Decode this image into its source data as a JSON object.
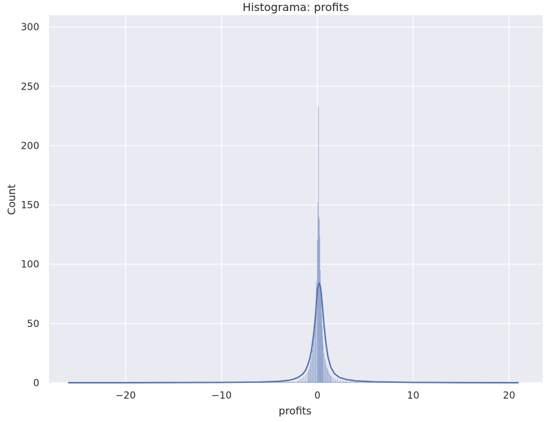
{
  "chart_data": {
    "type": "histogram",
    "title": "Histograma: profits",
    "xlabel": "profits",
    "ylabel": "Count",
    "xlim": [
      -28,
      23.5
    ],
    "ylim": [
      0,
      310
    ],
    "xticks": [
      -20,
      -10,
      0,
      10,
      20
    ],
    "xtick_labels": [
      "−20",
      "−10",
      "0",
      "10",
      "20"
    ],
    "yticks": [
      0,
      50,
      100,
      150,
      200,
      250,
      300
    ],
    "ytick_labels": [
      "0",
      "50",
      "100",
      "150",
      "200",
      "250",
      "300"
    ],
    "grid": true,
    "bar_color": "#8da0cb",
    "kde_color": "#4c72b0",
    "background_color": "#eaeaf2",
    "bins": {
      "x": [
        -2.0,
        -1.8,
        -1.6,
        -1.4,
        -1.2,
        -1.0,
        -0.9,
        -0.8,
        -0.7,
        -0.6,
        -0.5,
        -0.4,
        -0.3,
        -0.2,
        -0.1,
        0.0,
        0.05,
        0.1,
        0.15,
        0.2,
        0.25,
        0.3,
        0.35,
        0.4,
        0.45,
        0.5,
        0.55,
        0.6,
        0.7,
        0.8,
        0.9,
        1.0,
        1.1,
        1.2,
        1.3,
        1.4,
        1.5,
        1.7,
        1.9,
        2.1,
        2.4,
        2.7,
        3.0,
        3.5,
        4.0,
        5.0,
        6.0
      ],
      "counts": [
        2,
        3,
        4,
        5,
        7,
        9,
        11,
        14,
        18,
        22,
        28,
        35,
        45,
        60,
        85,
        120,
        152,
        233,
        140,
        138,
        123,
        95,
        80,
        70,
        58,
        48,
        40,
        32,
        25,
        20,
        16,
        13,
        11,
        9,
        7,
        6,
        5,
        4,
        3,
        3,
        2,
        2,
        2,
        1,
        1,
        1,
        1
      ],
      "width": 0.05
    },
    "tail_range": [
      -26,
      21
    ],
    "kde": {
      "x": [
        -26,
        -20,
        -10,
        -6,
        -4,
        -3,
        -2.5,
        -2,
        -1.5,
        -1.2,
        -1.0,
        -0.8,
        -0.6,
        -0.4,
        -0.2,
        0.0,
        0.1,
        0.2,
        0.3,
        0.4,
        0.5,
        0.7,
        0.9,
        1.1,
        1.4,
        1.8,
        2.3,
        3.0,
        4.0,
        6.0,
        10,
        15,
        21
      ],
      "y": [
        0,
        0,
        0.3,
        0.6,
        1.2,
        2,
        3,
        4.5,
        7.5,
        11,
        15,
        20,
        28,
        40,
        56,
        79,
        82,
        84,
        82,
        76,
        67,
        48,
        33,
        22,
        13,
        7.5,
        4.5,
        2.8,
        1.6,
        0.8,
        0.3,
        0.1,
        0
      ]
    }
  }
}
